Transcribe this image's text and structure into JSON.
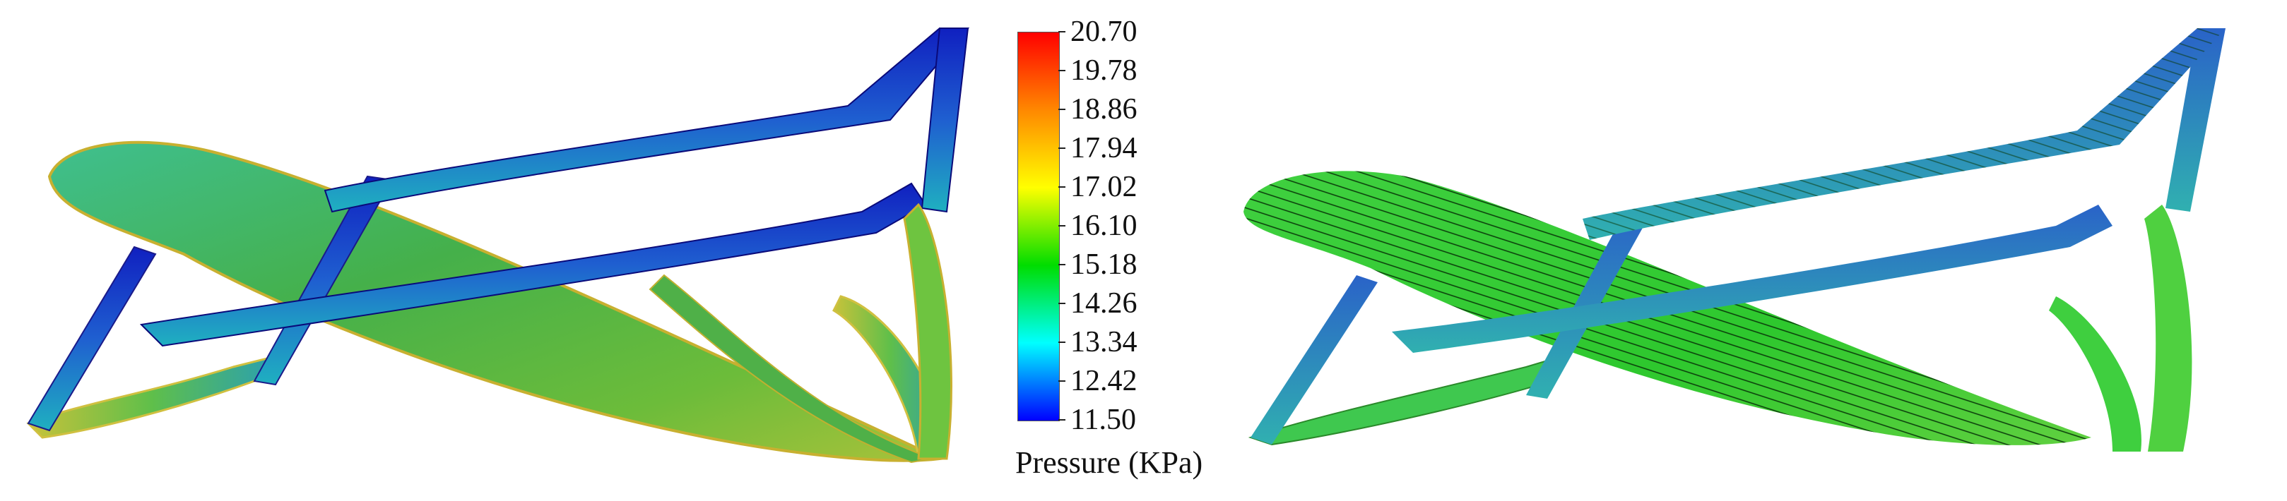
{
  "colorbar": {
    "title": "Pressure (KPa)",
    "unit": "KPa",
    "min": 11.5,
    "max": 20.7,
    "ticks": [
      "20.70",
      "19.78",
      "18.86",
      "17.94",
      "17.02",
      "16.10",
      "15.18",
      "14.26",
      "13.34",
      "12.42",
      "11.50"
    ],
    "colors": [
      "#ff0000",
      "#ff8800",
      "#ffff00",
      "#00dd00",
      "#00ffff",
      "#0000ff"
    ]
  },
  "panels": [
    {
      "name": "pressure-contour-view",
      "description_colors": {
        "body": "#3fae3f",
        "wing": "#1a2fc8"
      }
    },
    {
      "name": "streamline-view",
      "description_colors": {
        "body": "#2fcf2f",
        "wing": "#2a63c8"
      }
    }
  ]
}
